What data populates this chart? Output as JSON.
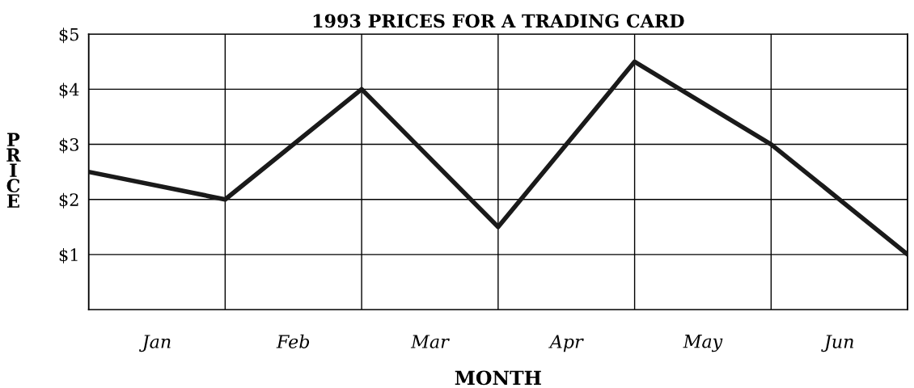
{
  "chart_data": {
    "type": "line",
    "title": "1993 PRICES FOR A TRADING CARD",
    "xlabel": "MONTH",
    "ylabel": "PRICE",
    "categories": [
      null,
      null,
      null,
      null,
      null,
      null,
      null
    ],
    "series": [
      {
        "color": "#1a1a1a",
        "values": [
          2.5,
          2.0,
          4.0,
          1.5,
          4.5,
          3.0,
          1.0
        ]
      }
    ],
    "annotations": [
      "Jan",
      "Feb",
      "Mar",
      "Apr",
      "May",
      "Jun"
    ],
    "ylim": [
      0,
      5
    ],
    "yticks": [
      {
        "value": 1,
        "label": "$1"
      },
      {
        "value": 2,
        "label": "$2"
      },
      {
        "value": 3,
        "label": "$3"
      },
      {
        "value": 4,
        "label": "$4"
      },
      {
        "value": 5,
        "label": "$5"
      }
    ],
    "grid": true,
    "marker": "none",
    "line_style": "solid",
    "legend": false
  }
}
